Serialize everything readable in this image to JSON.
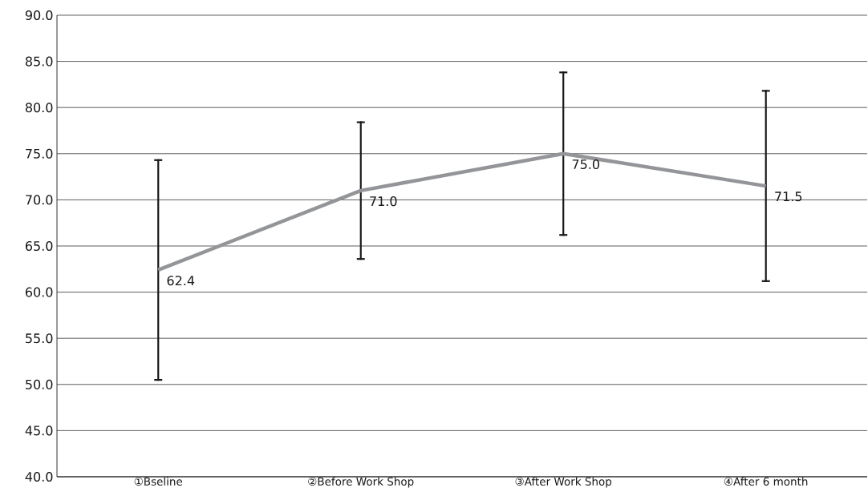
{
  "chart_data": {
    "type": "line",
    "categories": [
      "①Bseline",
      "②Before Work Shop",
      "③After Work Shop",
      "④After 6 month"
    ],
    "series": [
      {
        "color": "#939598",
        "values": [
          62.4,
          71.0,
          75.0,
          71.5
        ],
        "errors": [
          12.0,
          7.5,
          8.9,
          10.4
        ],
        "value_labels": [
          "62.4",
          "71.0",
          "75.0",
          "71.5"
        ]
      }
    ],
    "ylim": [
      40,
      90
    ],
    "yticks": [
      {
        "value": 40,
        "label": "40.0"
      },
      {
        "value": 45,
        "label": "45.0"
      },
      {
        "value": 50,
        "label": "50.0"
      },
      {
        "value": 55,
        "label": "55.0"
      },
      {
        "value": 60,
        "label": "60.0"
      },
      {
        "value": 65,
        "label": "65.0"
      },
      {
        "value": 70,
        "label": "70.0"
      },
      {
        "value": 75,
        "label": "75.0"
      },
      {
        "value": 80,
        "label": "80.0"
      },
      {
        "value": 85,
        "label": "85.0"
      },
      {
        "value": 90,
        "label": "90.0"
      }
    ],
    "grid": "y",
    "marker": "none",
    "line_style": "solid"
  }
}
